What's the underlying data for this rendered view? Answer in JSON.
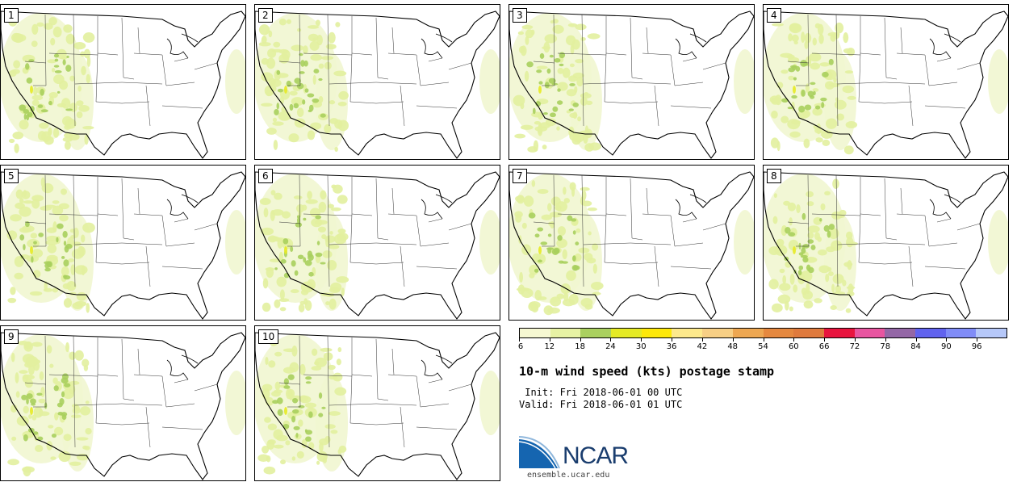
{
  "title": "10-m wind speed (kts) postage stamp",
  "init": " Init: Fri 2018-06-01 00 UTC",
  "valid": "Valid: Fri 2018-06-01 01 UTC",
  "stamps": [
    {
      "label": "1"
    },
    {
      "label": "2"
    },
    {
      "label": "3"
    },
    {
      "label": "4"
    },
    {
      "label": "5"
    },
    {
      "label": "6"
    },
    {
      "label": "7"
    },
    {
      "label": "8"
    },
    {
      "label": "9"
    },
    {
      "label": "10"
    }
  ],
  "colorbar": {
    "colors": [
      "#f6f8d2",
      "#e7f2a4",
      "#aad05f",
      "#e5ea25",
      "#fde80a",
      "#fde98c",
      "#f7cf85",
      "#eda752",
      "#e5883f",
      "#df7a3d",
      "#e8143e",
      "#e855a0",
      "#9467a6",
      "#6163ee",
      "#808cf7",
      "#b6c8f9"
    ],
    "ticks": [
      "6",
      "12",
      "18",
      "24",
      "30",
      "36",
      "42",
      "48",
      "54",
      "60",
      "66",
      "72",
      "78",
      "84",
      "90",
      "96"
    ]
  },
  "logo": {
    "text": "NCAR",
    "url": "ensemble.ucar.edu",
    "colors": {
      "blue": "#1565b0",
      "navy": "#1a3d6e"
    }
  },
  "map_colors": {
    "light": "#f1f6d0",
    "mid": "#e2ef9e",
    "dark": "#a9cf5d",
    "yellow": "#e7ea24"
  }
}
